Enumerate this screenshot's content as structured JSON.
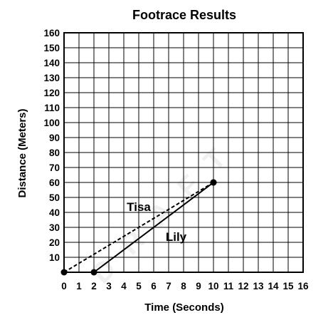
{
  "chart_data": {
    "type": "line",
    "title": "Footrace Results",
    "xlabel": "Time (Seconds)",
    "ylabel": "Distance (Meters)",
    "xlim": [
      0,
      16
    ],
    "ylim": [
      0,
      160
    ],
    "x_ticks": [
      "0",
      "1",
      "2",
      "3",
      "4",
      "5",
      "6",
      "7",
      "8",
      "9",
      "10",
      "11",
      "12",
      "13",
      "14",
      "15",
      "16"
    ],
    "y_ticks": [
      "10",
      "20",
      "30",
      "40",
      "50",
      "60",
      "70",
      "80",
      "90",
      "100",
      "110",
      "120",
      "130",
      "140",
      "150",
      "160"
    ],
    "grid": true,
    "series": [
      {
        "name": "Tisa",
        "style": "dashed",
        "points": [
          [
            0,
            0
          ],
          [
            10,
            60
          ]
        ],
        "label_at": [
          5,
          41
        ]
      },
      {
        "name": "Lily",
        "style": "solid",
        "points": [
          [
            2,
            0
          ],
          [
            10,
            60
          ]
        ],
        "label_at": [
          7.5,
          21
        ]
      }
    ],
    "watermark": "DRAFT"
  }
}
